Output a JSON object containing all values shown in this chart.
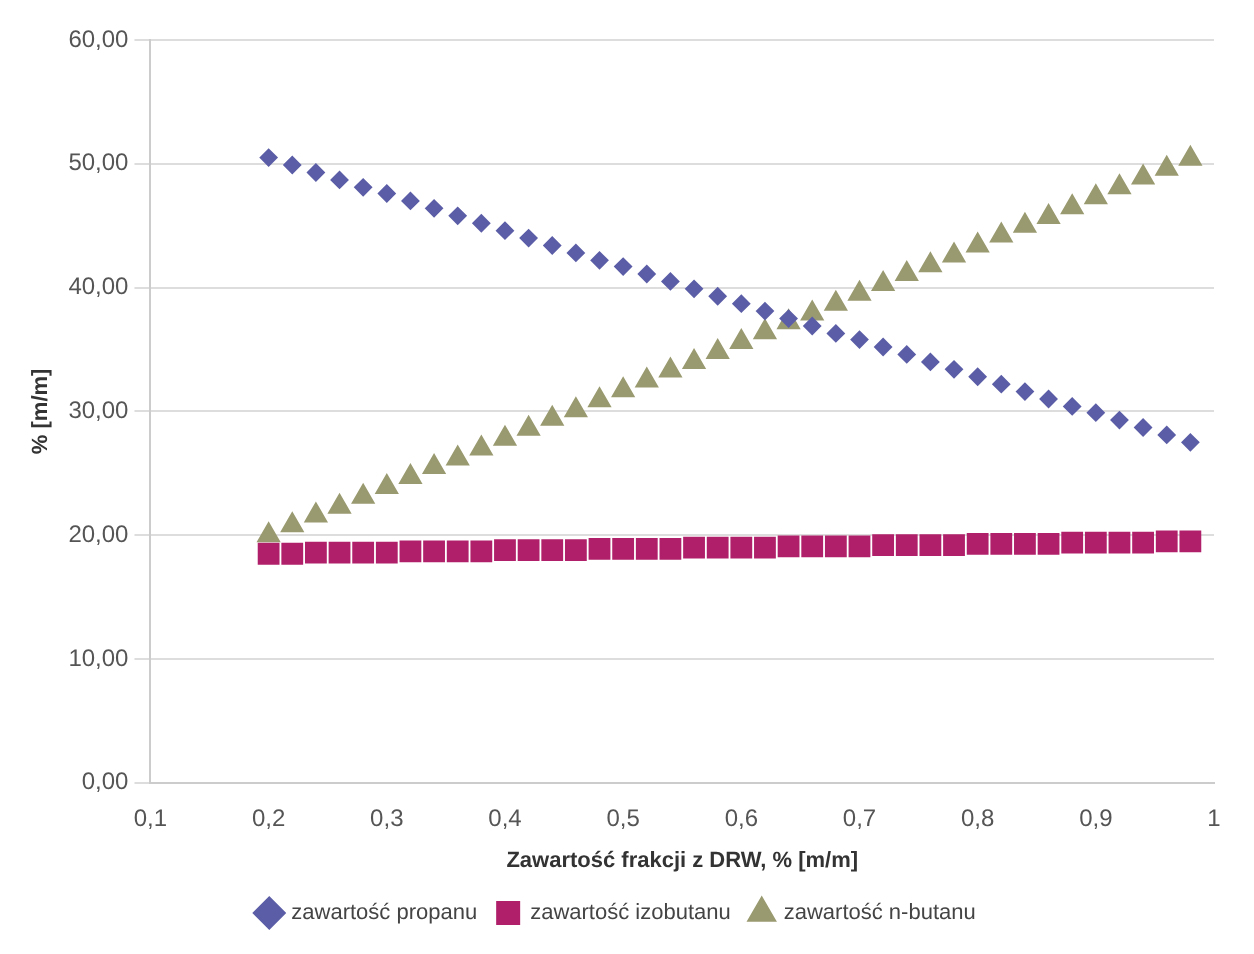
{
  "chart_data": {
    "type": "scatter",
    "xlabel": "Zawartość frakcji z DRW, % [m/m]",
    "ylabel": "% [m/m]",
    "x": [
      0.2,
      0.22,
      0.24,
      0.26,
      0.28,
      0.3,
      0.32,
      0.34,
      0.36,
      0.38,
      0.4,
      0.42,
      0.44,
      0.46,
      0.48,
      0.5,
      0.52,
      0.54,
      0.56,
      0.58,
      0.6,
      0.62,
      0.64,
      0.66,
      0.68,
      0.7,
      0.72,
      0.74,
      0.76,
      0.78,
      0.8,
      0.82,
      0.84,
      0.86,
      0.88,
      0.9,
      0.92,
      0.94,
      0.96,
      0.98
    ],
    "series": [
      {
        "name": "zawartość propanu",
        "color": "#5b5ea6",
        "marker": "diamond",
        "values": [
          50.5,
          49.9,
          49.3,
          48.7,
          48.1,
          47.6,
          47.0,
          46.4,
          45.8,
          45.2,
          44.6,
          44.0,
          43.4,
          42.8,
          42.2,
          41.7,
          41.1,
          40.5,
          39.9,
          39.3,
          38.7,
          38.1,
          37.5,
          36.9,
          36.3,
          35.8,
          35.2,
          34.6,
          34.0,
          33.4,
          32.8,
          32.2,
          31.6,
          31.0,
          30.4,
          29.9,
          29.3,
          28.7,
          28.1,
          27.5
        ]
      },
      {
        "name": "zawartość izobutanu",
        "color": "#b0206a",
        "marker": "square",
        "values": [
          18.5,
          18.5,
          18.6,
          18.6,
          18.6,
          18.6,
          18.7,
          18.7,
          18.7,
          18.7,
          18.8,
          18.8,
          18.8,
          18.8,
          18.9,
          18.9,
          18.9,
          18.9,
          19.0,
          19.0,
          19.0,
          19.0,
          19.1,
          19.1,
          19.1,
          19.1,
          19.2,
          19.2,
          19.2,
          19.2,
          19.3,
          19.3,
          19.3,
          19.3,
          19.4,
          19.4,
          19.4,
          19.4,
          19.5,
          19.5
        ]
      },
      {
        "name": "zawartość n-butanu",
        "color": "#9a9a70",
        "marker": "triangle",
        "values": [
          20.0,
          20.8,
          21.6,
          22.3,
          23.1,
          23.9,
          24.7,
          25.5,
          26.2,
          27.0,
          27.8,
          28.6,
          29.4,
          30.1,
          30.9,
          31.7,
          32.5,
          33.3,
          34.0,
          34.8,
          35.6,
          36.4,
          37.2,
          37.9,
          38.7,
          39.5,
          40.3,
          41.1,
          41.8,
          42.6,
          43.4,
          44.2,
          45.0,
          45.7,
          46.5,
          47.3,
          48.1,
          48.9,
          49.6,
          50.4
        ]
      }
    ],
    "xlim": [
      0.1,
      1
    ],
    "xticks": [
      {
        "value": 0.1,
        "label": "0,1"
      },
      {
        "value": 0.2,
        "label": "0,2"
      },
      {
        "value": 0.3,
        "label": "0,3"
      },
      {
        "value": 0.4,
        "label": "0,4"
      },
      {
        "value": 0.5,
        "label": "0,5"
      },
      {
        "value": 0.6,
        "label": "0,6"
      },
      {
        "value": 0.7,
        "label": "0,7"
      },
      {
        "value": 0.8,
        "label": "0,8"
      },
      {
        "value": 0.9,
        "label": "0,9"
      },
      1
    ],
    "ylim": [
      0,
      60
    ],
    "yticks": [
      {
        "value": 0,
        "label": "0,00"
      },
      {
        "value": 10,
        "label": "10,00"
      },
      {
        "value": 20,
        "label": "20,00"
      },
      {
        "value": 30,
        "label": "30,00"
      },
      {
        "value": 40,
        "label": "40,00"
      },
      {
        "value": 50,
        "label": "50,00"
      },
      {
        "value": 60,
        "label": "60,00"
      }
    ],
    "grid": "y",
    "legend": "bottom"
  }
}
